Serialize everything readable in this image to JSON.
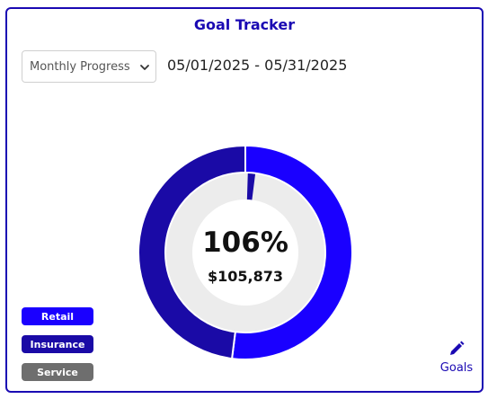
{
  "title": "Goal Tracker",
  "period_select": {
    "selected": "Monthly Progress"
  },
  "date_range": "05/01/2025 - 05/31/2025",
  "progress": {
    "percent_label": "106%",
    "amount_label": "$105,873",
    "percent_value": 1.06
  },
  "legend": [
    {
      "label": "Retail",
      "color": "#1a00ff"
    },
    {
      "label": "Insurance",
      "color": "#1a0aa6"
    },
    {
      "label": "Service",
      "color": "#6e6e6e"
    }
  ],
  "goals_button": {
    "label": "Goals",
    "icon": "pencil-icon"
  },
  "chart_data": {
    "type": "pie",
    "rings": [
      {
        "name": "Retail",
        "fraction": 0.52,
        "color": "#1a00ff"
      },
      {
        "name": "Insurance",
        "fraction": 0.48,
        "color": "#1a0aa6"
      }
    ],
    "inner_ring": {
      "name": "Insurance",
      "fraction": 0.015,
      "color": "#1a0aa6",
      "track_color": "#ececec"
    }
  },
  "colors": {
    "accent": "#1a09b3",
    "retail": "#1a00ff",
    "insurance": "#1a0aa6",
    "service": "#6e6e6e",
    "track": "#ececec"
  }
}
